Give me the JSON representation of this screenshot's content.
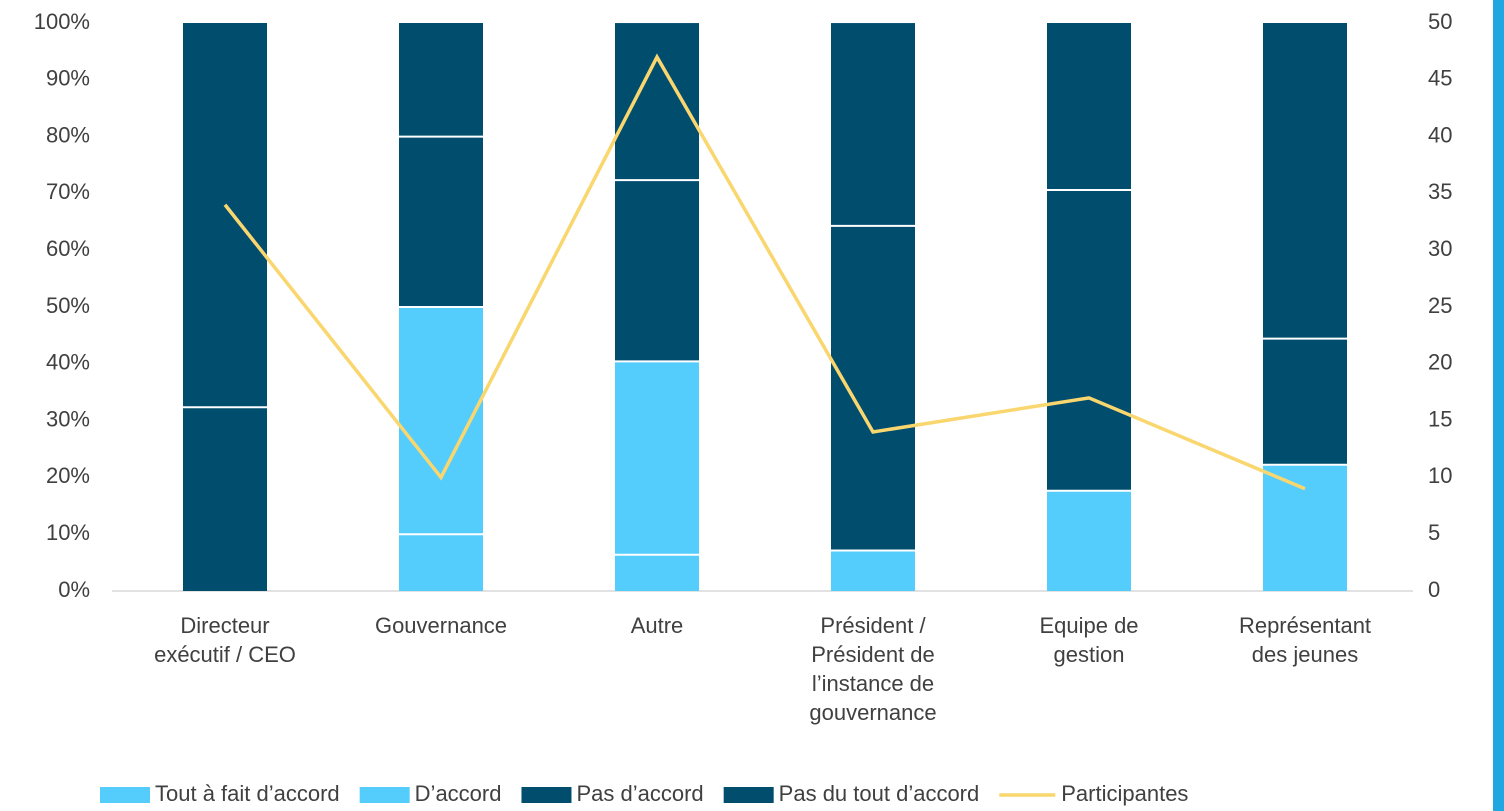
{
  "chart_data": {
    "type": "stacked_bar_line",
    "categories": [
      "Directeur\nexécutif / CEO",
      "Gouvernance",
      "Autre",
      "Président /\nPrésident de\nl’instance de\ngouvernance",
      "Equipe de\ngestion",
      "Représentant\ndes jeunes"
    ],
    "series": [
      {
        "name": "Tout à fait d’accord",
        "color": "#55cdfc",
        "values": [
          0,
          10,
          6.38,
          7.14,
          17.65,
          22.22
        ]
      },
      {
        "name": "D’accord",
        "color": "#55cdfc",
        "values": [
          0,
          40,
          34.04,
          0,
          0,
          0
        ]
      },
      {
        "name": "Pas d’accord",
        "color": "#004d6e",
        "values": [
          32.35,
          30,
          31.91,
          57.14,
          52.94,
          22.22
        ]
      },
      {
        "name": "Pas du tout d’accord",
        "color": "#004d6e",
        "values": [
          67.65,
          20,
          27.66,
          35.71,
          29.41,
          55.56
        ]
      },
      {
        "name": "Participantes",
        "color": "#f9d66e",
        "axis": "y2",
        "line": true,
        "values": [
          34,
          10,
          47,
          14,
          17,
          9
        ]
      }
    ],
    "ylim": [
      0,
      100
    ],
    "yticks": [
      {
        "value": 0,
        "label": "0%"
      },
      {
        "value": 10,
        "label": "10%"
      },
      {
        "value": 20,
        "label": "20%"
      },
      {
        "value": 30,
        "label": "30%"
      },
      {
        "value": 40,
        "label": "40%"
      },
      {
        "value": 50,
        "label": "50%"
      },
      {
        "value": 60,
        "label": "60%"
      },
      {
        "value": 70,
        "label": "70%"
      },
      {
        "value": 80,
        "label": "80%"
      },
      {
        "value": 90,
        "label": "90%"
      },
      {
        "value": 100,
        "label": "100%"
      }
    ],
    "y2lim": [
      0,
      50
    ],
    "y2ticks": [
      0,
      5,
      10,
      15,
      20,
      25,
      30,
      35,
      40,
      45,
      50
    ],
    "legend": "bottom"
  }
}
